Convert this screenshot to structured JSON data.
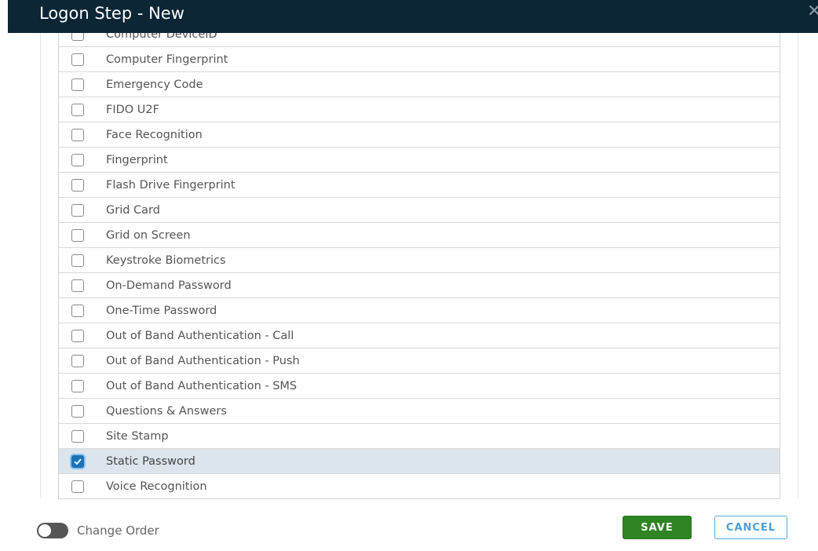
{
  "dialog": {
    "title": "Logon Step - New",
    "close_icon": "close-icon"
  },
  "methods": [
    {
      "label": "Computer DeviceID",
      "checked": false
    },
    {
      "label": "Computer Fingerprint",
      "checked": false
    },
    {
      "label": "Emergency Code",
      "checked": false
    },
    {
      "label": "FIDO U2F",
      "checked": false
    },
    {
      "label": "Face Recognition",
      "checked": false
    },
    {
      "label": "Fingerprint",
      "checked": false
    },
    {
      "label": "Flash Drive Fingerprint",
      "checked": false
    },
    {
      "label": "Grid Card",
      "checked": false
    },
    {
      "label": "Grid on Screen",
      "checked": false
    },
    {
      "label": "Keystroke Biometrics",
      "checked": false
    },
    {
      "label": "On-Demand Password",
      "checked": false
    },
    {
      "label": "One-Time Password",
      "checked": false
    },
    {
      "label": "Out of Band Authentication - Call",
      "checked": false
    },
    {
      "label": "Out of Band Authentication - Push",
      "checked": false
    },
    {
      "label": "Out of Band Authentication - SMS",
      "checked": false
    },
    {
      "label": "Questions & Answers",
      "checked": false
    },
    {
      "label": "Site Stamp",
      "checked": false
    },
    {
      "label": "Static Password",
      "checked": true
    },
    {
      "label": "Voice Recognition",
      "checked": false
    }
  ],
  "footer": {
    "change_order_label": "Change Order",
    "change_order_on": false,
    "save_label": "SAVE",
    "cancel_label": "CANCEL"
  },
  "colors": {
    "header": "#0c2636",
    "save": "#2f8424",
    "cancel": "#4a9fd3",
    "checked_row": "#dde5ec",
    "checkbox": "#1a73b8"
  }
}
